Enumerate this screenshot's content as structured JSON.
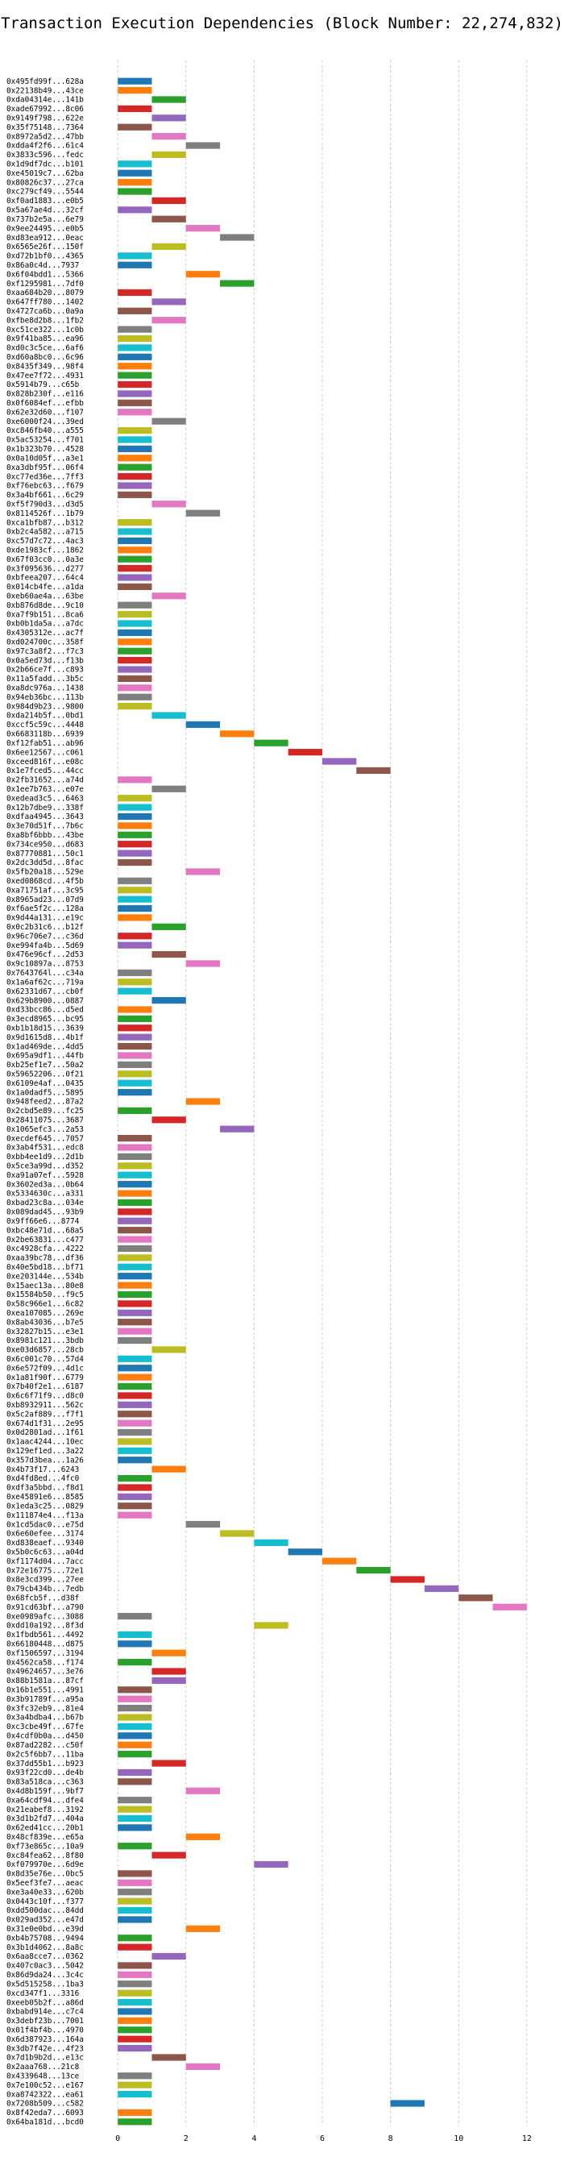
{
  "chart_data": {
    "type": "bar",
    "orientation": "horizontal-gantt",
    "title": "Transaction Execution Dependencies (Block Number: 22,274,832)",
    "xlabel": "",
    "ylabel": "",
    "xlim": [
      -0.5,
      12.5
    ],
    "xticks": [
      0,
      2,
      4,
      6,
      8,
      10,
      12
    ],
    "grid": true,
    "palette": [
      "#1f77b4",
      "#ff7f0e",
      "#2ca02c",
      "#d62728",
      "#9467bd",
      "#8c564b",
      "#e377c2",
      "#7f7f7f",
      "#bcbd22",
      "#17becf"
    ],
    "tasks": [
      {
        "label": "0x495fd99f...628a",
        "start": 0
      },
      {
        "label": "0x22138b49...43ce",
        "start": 0
      },
      {
        "label": "0xda04314e...141b",
        "start": 1
      },
      {
        "label": "0xade67992...8c06",
        "start": 0
      },
      {
        "label": "0x9149f798...622e",
        "start": 1
      },
      {
        "label": "0x35f75148...7364",
        "start": 0
      },
      {
        "label": "0x8972a5d2...47bb",
        "start": 1
      },
      {
        "label": "0xdda4f2f6...61c4",
        "start": 2
      },
      {
        "label": "0x3833c596...fedc",
        "start": 1
      },
      {
        "label": "0x1d9df7dc...b101",
        "start": 0
      },
      {
        "label": "0xe45019c7...62ba",
        "start": 0
      },
      {
        "label": "0x80826c37...27ca",
        "start": 0
      },
      {
        "label": "0xc279cf49...5544",
        "start": 0
      },
      {
        "label": "0xf0ad1883...e0b5",
        "start": 1
      },
      {
        "label": "0x5a67ae4d...32cf",
        "start": 0
      },
      {
        "label": "0x737b2e5a...6e79",
        "start": 1
      },
      {
        "label": "0x9ee24495...e0b5",
        "start": 2
      },
      {
        "label": "0xd83ea912...0eac",
        "start": 3
      },
      {
        "label": "0x6565e26f...150f",
        "start": 1
      },
      {
        "label": "0xd72b1bf0...4365",
        "start": 0
      },
      {
        "label": "0x86a0c4d...7937",
        "start": 0
      },
      {
        "label": "0x6f04bdd1...5366",
        "start": 2
      },
      {
        "label": "0xf1295981...7df0",
        "start": 3
      },
      {
        "label": "0xaa684b20...8079",
        "start": 0
      },
      {
        "label": "0x647ff780...1402",
        "start": 1
      },
      {
        "label": "0x4727ca6b...0a9a",
        "start": 0
      },
      {
        "label": "0xfbe8d2b8...1fb2",
        "start": 1
      },
      {
        "label": "0xc51ce322...1c0b",
        "start": 0
      },
      {
        "label": "0x9f41ba85...ea96",
        "start": 0
      },
      {
        "label": "0xd0c3c5ce...6af6",
        "start": 0
      },
      {
        "label": "0xd60a8bc0...6c96",
        "start": 0
      },
      {
        "label": "0x8435f349...98f4",
        "start": 0
      },
      {
        "label": "0x47ee7f72...4931",
        "start": 0
      },
      {
        "label": "0x5914b79...c65b",
        "start": 0
      },
      {
        "label": "0x828b230f...e116",
        "start": 0
      },
      {
        "label": "0x0f6084ef...efbb",
        "start": 0
      },
      {
        "label": "0x62e32d60...f107",
        "start": 0
      },
      {
        "label": "0xe6000f24...39ed",
        "start": 1
      },
      {
        "label": "0xc846fb40...a555",
        "start": 0
      },
      {
        "label": "0x5ac53254...f701",
        "start": 0
      },
      {
        "label": "0x1b323b70...4528",
        "start": 0
      },
      {
        "label": "0x0a10d05f...a3e1",
        "start": 0
      },
      {
        "label": "0xa3dbf95f...06f4",
        "start": 0
      },
      {
        "label": "0xc77ed36e...7ff3",
        "start": 0
      },
      {
        "label": "0xf76ebc63...f679",
        "start": 0
      },
      {
        "label": "0x3a4bf661...6c29",
        "start": 0
      },
      {
        "label": "0xf5f790d3...d3d5",
        "start": 1
      },
      {
        "label": "0x8114526f...1b79",
        "start": 2
      },
      {
        "label": "0xca1bfb87...b312",
        "start": 0
      },
      {
        "label": "0xb2c4a582...a715",
        "start": 0
      },
      {
        "label": "0xc57d7c72...4ac3",
        "start": 0
      },
      {
        "label": "0xde1983cf...1862",
        "start": 0
      },
      {
        "label": "0x67f03cc0...0a3e",
        "start": 0
      },
      {
        "label": "0x3f095636...d277",
        "start": 0
      },
      {
        "label": "0xbfeea207...64c4",
        "start": 0
      },
      {
        "label": "0x014cb4fe...a1da",
        "start": 0
      },
      {
        "label": "0xeb60ae4a...63be",
        "start": 1
      },
      {
        "label": "0xb876d8de...9c10",
        "start": 0
      },
      {
        "label": "0xa7f9b151...8ca6",
        "start": 0
      },
      {
        "label": "0xb0b1da5a...a7dc",
        "start": 0
      },
      {
        "label": "0x4305312e...ac7f",
        "start": 0
      },
      {
        "label": "0xd024700c...358f",
        "start": 0
      },
      {
        "label": "0x97c3a8f2...f7c3",
        "start": 0
      },
      {
        "label": "0x0a5ed73d...f13b",
        "start": 0
      },
      {
        "label": "0x2b66ce7f...c893",
        "start": 0
      },
      {
        "label": "0x11a5fadd...3b5c",
        "start": 0
      },
      {
        "label": "0xa8dc976a...1438",
        "start": 0
      },
      {
        "label": "0x94eb36bc...113b",
        "start": 0
      },
      {
        "label": "0x984d9b23...9800",
        "start": 0
      },
      {
        "label": "0xda214b5f...0bd1",
        "start": 1
      },
      {
        "label": "0xccf5c59c...4448",
        "start": 2
      },
      {
        "label": "0x6683118b...6939",
        "start": 3
      },
      {
        "label": "0xf12fab51...ab96",
        "start": 4
      },
      {
        "label": "0x6ee12567...c061",
        "start": 5
      },
      {
        "label": "0xceed816f...e08c",
        "start": 6
      },
      {
        "label": "0x1e7fced5...44cc",
        "start": 7
      },
      {
        "label": "0x2fb31652...a74d",
        "start": 0
      },
      {
        "label": "0x1ee7b763...e07e",
        "start": 1
      },
      {
        "label": "0xedead3c5...6463",
        "start": 0
      },
      {
        "label": "0x12b7dbe9...338f",
        "start": 0
      },
      {
        "label": "0xdfaa4945...3643",
        "start": 0
      },
      {
        "label": "0x3e70d51f...7b6c",
        "start": 0
      },
      {
        "label": "0xa8bf6bbb...43be",
        "start": 0
      },
      {
        "label": "0x734ce950...d683",
        "start": 0
      },
      {
        "label": "0x87770881...50c1",
        "start": 0
      },
      {
        "label": "0x2dc3dd5d...8fac",
        "start": 0
      },
      {
        "label": "0x5fb20a18...529e",
        "start": 2
      },
      {
        "label": "0xed0868cd...4f5b",
        "start": 0
      },
      {
        "label": "0xa71751af...3c95",
        "start": 0
      },
      {
        "label": "0x8965ad23...07d9",
        "start": 0
      },
      {
        "label": "0xf6ae5f2c...128a",
        "start": 0
      },
      {
        "label": "0x9d44a131...e19c",
        "start": 0
      },
      {
        "label": "0x0c2b31c6...b12f",
        "start": 1
      },
      {
        "label": "0x96c706e7...c36d",
        "start": 0
      },
      {
        "label": "0xe994fa4b...5d69",
        "start": 0
      },
      {
        "label": "0x476e96cf...2d53",
        "start": 1
      },
      {
        "label": "0x9c10897a...8753",
        "start": 2
      },
      {
        "label": "0x7643764l...c34a",
        "start": 0
      },
      {
        "label": "0x1a6af62c...719a",
        "start": 0
      },
      {
        "label": "0x62331d67...cb0f",
        "start": 0
      },
      {
        "label": "0x629b8900...0887",
        "start": 1
      },
      {
        "label": "0xd33bcc86...d5ed",
        "start": 0
      },
      {
        "label": "0x3ecd8965...bc95",
        "start": 0
      },
      {
        "label": "0xb1b18d15...3639",
        "start": 0
      },
      {
        "label": "0x9d1615d8...4b1f",
        "start": 0
      },
      {
        "label": "0x1ad469de...4dd5",
        "start": 0
      },
      {
        "label": "0x695a9df1...44fb",
        "start": 0
      },
      {
        "label": "0xb25ef1e7...50a2",
        "start": 0
      },
      {
        "label": "0x59652206...0f21",
        "start": 0
      },
      {
        "label": "0x6109e4af...0435",
        "start": 0
      },
      {
        "label": "0x1a0dadf5...5895",
        "start": 0
      },
      {
        "label": "0x948feed2...87a2",
        "start": 2
      },
      {
        "label": "0x2cbd5e89...fc25",
        "start": 0
      },
      {
        "label": "0x28411075...3687",
        "start": 1
      },
      {
        "label": "0x1065efc3...2a53",
        "start": 3
      },
      {
        "label": "0xecdef645...7057",
        "start": 0
      },
      {
        "label": "0x3ab4f531...edc8",
        "start": 0
      },
      {
        "label": "0xbb4ee1d9...2d1b",
        "start": 0
      },
      {
        "label": "0x5ce3a99d...d352",
        "start": 0
      },
      {
        "label": "0xa91a07ef...5928",
        "start": 0
      },
      {
        "label": "0x3602ed3a...0b64",
        "start": 0
      },
      {
        "label": "0x5334630c...a331",
        "start": 0
      },
      {
        "label": "0xbad23c8a...034e",
        "start": 0
      },
      {
        "label": "0x089dad45...93b9",
        "start": 0
      },
      {
        "label": "0x9ff66e6...8774",
        "start": 0
      },
      {
        "label": "0xbc48e71d...68a5",
        "start": 0
      },
      {
        "label": "0x2be63831...c477",
        "start": 0
      },
      {
        "label": "0xc4928cfa...4222",
        "start": 0
      },
      {
        "label": "0xaa39bc78...df36",
        "start": 0
      },
      {
        "label": "0x40e5bd18...bf71",
        "start": 0
      },
      {
        "label": "0xe203144e...534b",
        "start": 0
      },
      {
        "label": "0x15aec13a...80e8",
        "start": 0
      },
      {
        "label": "0x15584b50...f9c5",
        "start": 0
      },
      {
        "label": "0x58c966e1...6c82",
        "start": 0
      },
      {
        "label": "0xea107085...269e",
        "start": 0
      },
      {
        "label": "0x8ab43036...b7e5",
        "start": 0
      },
      {
        "label": "0x32827b15...e3e1",
        "start": 0
      },
      {
        "label": "0x8981c121...3bdb",
        "start": 0
      },
      {
        "label": "0xe03d6857...28cb",
        "start": 1
      },
      {
        "label": "0x6c001c70...57d4",
        "start": 0
      },
      {
        "label": "0x6e572f09...4d1c",
        "start": 0
      },
      {
        "label": "0x1a81f90f...6779",
        "start": 0
      },
      {
        "label": "0x7b40f2e1...6187",
        "start": 0
      },
      {
        "label": "0x6c6f71f9...d8c0",
        "start": 0
      },
      {
        "label": "0xb8932911...562c",
        "start": 0
      },
      {
        "label": "0x5c2af889...f7f1",
        "start": 0
      },
      {
        "label": "0x674d1f31...2e95",
        "start": 0
      },
      {
        "label": "0x0d2801ad...1f61",
        "start": 0
      },
      {
        "label": "0x1aac4244...10ec",
        "start": 0
      },
      {
        "label": "0x129ef1ed...3a22",
        "start": 0
      },
      {
        "label": "0x357d3bea...1a26",
        "start": 0
      },
      {
        "label": "0x4b73f17...6243",
        "start": 1
      },
      {
        "label": "0xd4fd8ed...4fc0",
        "start": 0
      },
      {
        "label": "0xdf3a5bbd...f8d1",
        "start": 0
      },
      {
        "label": "0xe45891e6...8585",
        "start": 0
      },
      {
        "label": "0x1eda3c25...0829",
        "start": 0
      },
      {
        "label": "0x111874e4...f13a",
        "start": 0
      },
      {
        "label": "0x1cd5dac0...e75d",
        "start": 2
      },
      {
        "label": "0x6e60efee...3174",
        "start": 3
      },
      {
        "label": "0xd838eaef...9340",
        "start": 4
      },
      {
        "label": "0x5b0c6c63...a04d",
        "start": 5
      },
      {
        "label": "0xf1174d04...7acc",
        "start": 6
      },
      {
        "label": "0x72e16775...72e1",
        "start": 7
      },
      {
        "label": "0x8e3cd399...27ee",
        "start": 8
      },
      {
        "label": "0x79cb434b...7edb",
        "start": 9
      },
      {
        "label": "0x68fcb5f...d38f",
        "start": 10
      },
      {
        "label": "0x91cd63bf...a790",
        "start": 11
      },
      {
        "label": "0xe0989afc...3088",
        "start": 0
      },
      {
        "label": "0xdd10a192...8f3d",
        "start": 4
      },
      {
        "label": "0x1fbdb561...4492",
        "start": 0
      },
      {
        "label": "0x66180448...d875",
        "start": 0
      },
      {
        "label": "0xf1506597...3194",
        "start": 1
      },
      {
        "label": "0x4562ca58...f174",
        "start": 0
      },
      {
        "label": "0x49624657...3e76",
        "start": 1
      },
      {
        "label": "0x88b1581a...87cf",
        "start": 1
      },
      {
        "label": "0x16b1e551...4991",
        "start": 0
      },
      {
        "label": "0x3b91789f...a95a",
        "start": 0
      },
      {
        "label": "0x3fc32eb9...81e4",
        "start": 0
      },
      {
        "label": "0x3a4bdba4...b67b",
        "start": 0
      },
      {
        "label": "0xc3cbe49f...67fe",
        "start": 0
      },
      {
        "label": "0x4cdf0b0a...d450",
        "start": 0
      },
      {
        "label": "0x87ad2282...c50f",
        "start": 0
      },
      {
        "label": "0x2c5f6bb7...11ba",
        "start": 0
      },
      {
        "label": "0x37dd55b1...b923",
        "start": 1
      },
      {
        "label": "0x93f22cd0...de4b",
        "start": 0
      },
      {
        "label": "0x83a518ca...c363",
        "start": 0
      },
      {
        "label": "0x4d8b159f...9bf7",
        "start": 2
      },
      {
        "label": "0xa64cdf94...dfe4",
        "start": 0
      },
      {
        "label": "0x21eabef8...3192",
        "start": 0
      },
      {
        "label": "0x3d1b2fd7...404a",
        "start": 0
      },
      {
        "label": "0x62ed41cc...20b1",
        "start": 0
      },
      {
        "label": "0x48cf839e...e65a",
        "start": 2
      },
      {
        "label": "0xf73e865c...10a9",
        "start": 0
      },
      {
        "label": "0xc84fea62...8f80",
        "start": 1
      },
      {
        "label": "0xf079970e...6d9e",
        "start": 4
      },
      {
        "label": "0x8d35e76e...0bc5",
        "start": 0
      },
      {
        "label": "0x5eef3fe7...aeac",
        "start": 0
      },
      {
        "label": "0xe3a40e33...620b",
        "start": 0
      },
      {
        "label": "0x0443c10f...f377",
        "start": 0
      },
      {
        "label": "0xdd500dac...84dd",
        "start": 0
      },
      {
        "label": "0x029ad352...e47d",
        "start": 0
      },
      {
        "label": "0x31e0e0bd...e39d",
        "start": 2
      },
      {
        "label": "0xb4b75708...9494",
        "start": 0
      },
      {
        "label": "0x3b1d4062...8a8c",
        "start": 0
      },
      {
        "label": "0x6aa8cce7...0362",
        "start": 1
      },
      {
        "label": "0x407c0ac3...5042",
        "start": 0
      },
      {
        "label": "0x86d9da24...3c4c",
        "start": 0
      },
      {
        "label": "0x5d515258...1ba3",
        "start": 0
      },
      {
        "label": "0xcd347f1...3316",
        "start": 0
      },
      {
        "label": "0xeeb05b2f...a86d",
        "start": 0
      },
      {
        "label": "0xbabd914e...c7c4",
        "start": 0
      },
      {
        "label": "0x3debf23b...7001",
        "start": 0
      },
      {
        "label": "0x01f4bf4b...4970",
        "start": 0
      },
      {
        "label": "0x6d387923...164a",
        "start": 0
      },
      {
        "label": "0x3db7f42e...4f23",
        "start": 0
      },
      {
        "label": "0x7d1b9b2d...e13c",
        "start": 1
      },
      {
        "label": "0x2aaa768...21c8",
        "start": 2
      },
      {
        "label": "0x4339648...13ce",
        "start": 0
      },
      {
        "label": "0x7e100c52...e167",
        "start": 0
      },
      {
        "label": "0xa8742322...ea61",
        "start": 0
      },
      {
        "label": "0x7208b509...c582",
        "start": 8
      },
      {
        "label": "0x8f42eda7...6093",
        "start": 0
      },
      {
        "label": "0x64ba181d...bcd0",
        "start": 0
      }
    ]
  }
}
